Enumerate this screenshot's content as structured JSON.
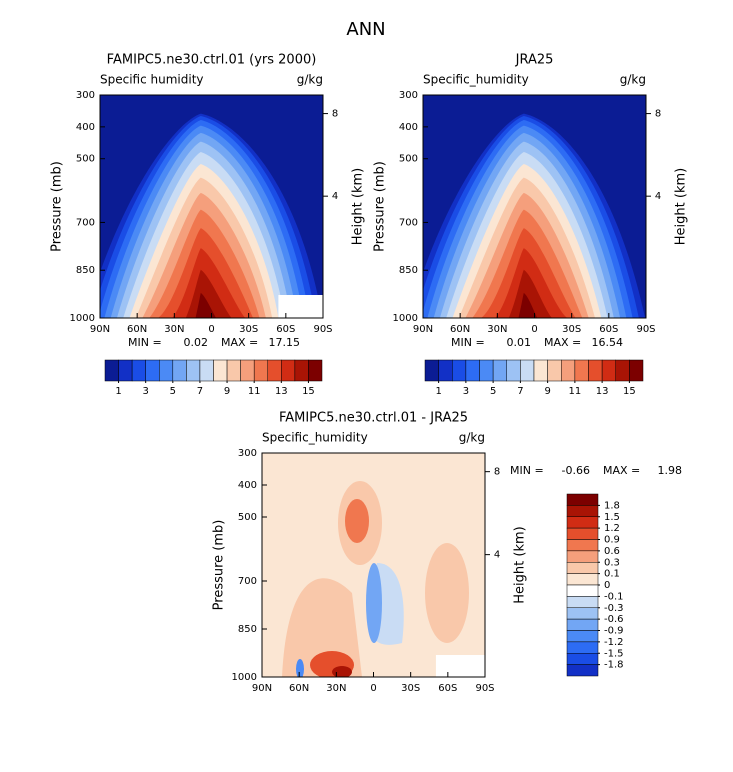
{
  "title": "ANN",
  "chart_data": [
    {
      "type": "contour",
      "title": "FAMIPC5.ne30.ctrl.01 (yrs 2000)",
      "subtitle": "Specific humidity",
      "units": "g/kg",
      "ylabel": "Pressure (mb)",
      "y2label": "Height (km)",
      "xlim": [
        90,
        -90
      ],
      "xticks": [
        {
          "value": 90,
          "label": "90N"
        },
        {
          "value": 60,
          "label": "60N"
        },
        {
          "value": 30,
          "label": "30N"
        },
        0,
        {
          "value": -30,
          "label": "30S"
        },
        {
          "value": -60,
          "label": "60S"
        },
        {
          "value": -90,
          "label": "90S"
        }
      ],
      "ylim": [
        300,
        1000
      ],
      "yticks": [
        300,
        400,
        500,
        700,
        850,
        1000
      ],
      "y2lim": [
        8.9,
        -1.9
      ],
      "y2ticks": [
        8,
        4
      ],
      "min_label": "MIN =",
      "min": 0.02,
      "max_label": "MAX =",
      "max": 17.15,
      "colorbar": {
        "orientation": "horizontal",
        "range": [
          0,
          16
        ],
        "ticks": [
          1,
          3,
          5,
          7,
          9,
          11,
          13,
          15
        ],
        "colors": [
          "#0b1c94",
          "#1230c6",
          "#1a4de6",
          "#2d6cf4",
          "#4b8af5",
          "#72a6f4",
          "#9dc2f4",
          "#c9dcf4",
          "#fbe6d3",
          "#f9c8aa",
          "#f59f7c",
          "#f0774f",
          "#e54f2c",
          "#d12c14",
          "#a91405",
          "#7c0000"
        ]
      }
    },
    {
      "type": "contour",
      "title": "JRA25",
      "subtitle": "Specific_humidity",
      "units": "g/kg",
      "ylabel": "Pressure (mb)",
      "y2label": "Height (km)",
      "xlim": [
        90,
        -90
      ],
      "xticks": [
        {
          "value": 90,
          "label": "90N"
        },
        {
          "value": 60,
          "label": "60N"
        },
        {
          "value": 30,
          "label": "30N"
        },
        0,
        {
          "value": -30,
          "label": "30S"
        },
        {
          "value": -60,
          "label": "60S"
        },
        {
          "value": -90,
          "label": "90S"
        }
      ],
      "ylim": [
        300,
        1000
      ],
      "yticks": [
        300,
        400,
        500,
        700,
        850,
        1000
      ],
      "y2lim": [
        8.9,
        -1.9
      ],
      "y2ticks": [
        8,
        4
      ],
      "min_label": "MIN =",
      "min": 0.01,
      "max_label": "MAX =",
      "max": 16.54,
      "colorbar": {
        "orientation": "horizontal",
        "range": [
          0,
          16
        ],
        "ticks": [
          1,
          3,
          5,
          7,
          9,
          11,
          13,
          15
        ],
        "colors": [
          "#0b1c94",
          "#1230c6",
          "#1a4de6",
          "#2d6cf4",
          "#4b8af5",
          "#72a6f4",
          "#9dc2f4",
          "#c9dcf4",
          "#fbe6d3",
          "#f9c8aa",
          "#f59f7c",
          "#f0774f",
          "#e54f2c",
          "#d12c14",
          "#a91405",
          "#7c0000"
        ]
      }
    },
    {
      "type": "contour",
      "title": "FAMIPC5.ne30.ctrl.01 - JRA25",
      "subtitle": "Specific_humidity",
      "units": "g/kg",
      "ylabel": "Pressure (mb)",
      "y2label": "Height (km)",
      "xlim": [
        90,
        -90
      ],
      "xticks": [
        {
          "value": 90,
          "label": "90N"
        },
        {
          "value": 60,
          "label": "60N"
        },
        {
          "value": 30,
          "label": "30N"
        },
        0,
        {
          "value": -30,
          "label": "30S"
        },
        {
          "value": -60,
          "label": "60S"
        },
        {
          "value": -90,
          "label": "90S"
        }
      ],
      "ylim": [
        300,
        1000
      ],
      "yticks": [
        300,
        400,
        500,
        700,
        850,
        1000
      ],
      "y2lim": [
        8.9,
        -1.9
      ],
      "y2ticks": [
        8,
        4
      ],
      "min_label": "MIN =",
      "min": -0.66,
      "max_label": "MAX =",
      "max": 1.98,
      "colorbar": {
        "orientation": "vertical",
        "ticks": [
          1.8,
          1.5,
          1.2,
          0.9,
          0.6,
          0.3,
          0.1,
          0,
          -0.1,
          -0.3,
          -0.6,
          -0.9,
          -1.2,
          -1.5,
          -1.8
        ],
        "colors": [
          "#7c0000",
          "#a91405",
          "#d12c14",
          "#e54f2c",
          "#f0774f",
          "#f59f7c",
          "#f9c8aa",
          "#fbe6d3",
          "#ffffff",
          "#c9dcf4",
          "#9dc2f4",
          "#72a6f4",
          "#4b8af5",
          "#2d6cf4",
          "#1a4de6",
          "#1230c6",
          "#0b1c94"
        ]
      }
    }
  ]
}
